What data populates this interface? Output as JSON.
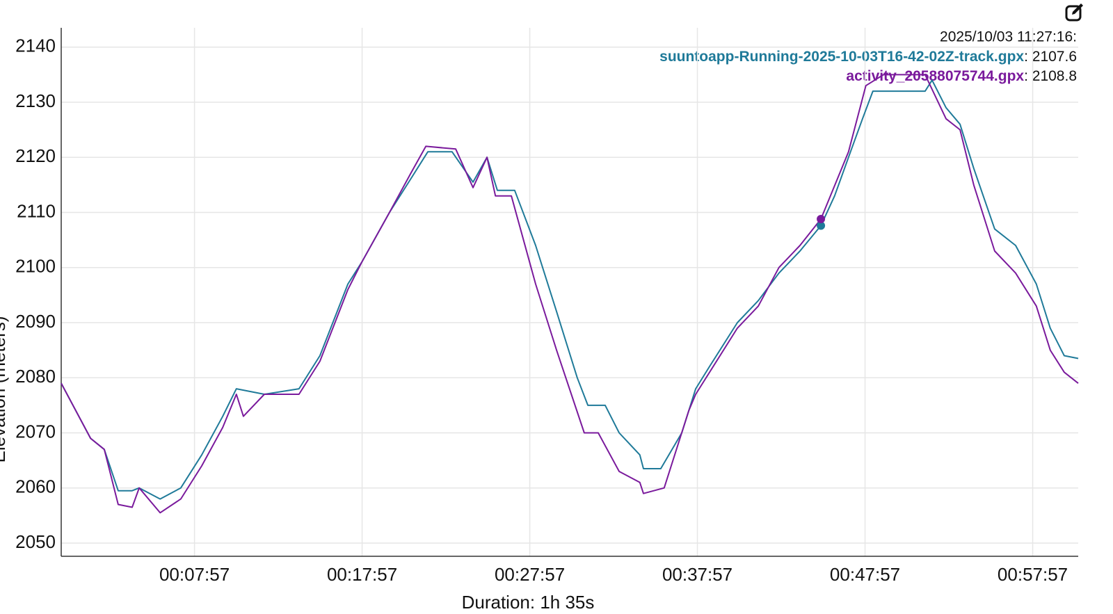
{
  "chart_data": {
    "type": "line",
    "y_label": "Elevation (meters)",
    "x_label": "Duration: 1h 35s",
    "xlim": [
      0,
      3640
    ],
    "ylim": [
      2047.6,
      2143.5
    ],
    "xticks": [
      {
        "value": 477,
        "label": "00:07:57"
      },
      {
        "value": 1077,
        "label": "00:17:57"
      },
      {
        "value": 1677,
        "label": "00:27:57"
      },
      {
        "value": 2277,
        "label": "00:37:57"
      },
      {
        "value": 2877,
        "label": "00:47:57"
      },
      {
        "value": 3477,
        "label": "00:57:57"
      }
    ],
    "yticks": [
      2050,
      2060,
      2070,
      2080,
      2090,
      2100,
      2110,
      2120,
      2130,
      2140
    ],
    "grid": true,
    "highlight": {
      "label": "2025/10/03 11:27:16:",
      "x": 2719,
      "values": [
        2107.6,
        2108.8
      ]
    },
    "series": [
      {
        "name": "suuntoapp-Running-2025-10-03T16-42-02Z-track.gpx",
        "color": "#1f7a99",
        "x": [
          0,
          105,
          154,
          204,
          254,
          279,
          354,
          428,
          503,
          578,
          627,
          727,
          851,
          926,
          1026,
          1076,
          1175,
          1250,
          1312,
          1399,
          1474,
          1524,
          1561,
          1623,
          1698,
          1773,
          1847,
          1885,
          1947,
          1997,
          2071,
          2084,
          2146,
          2221,
          2271,
          2320,
          2420,
          2495,
          2569,
          2644,
          2719,
          2768,
          2818,
          2868,
          2905,
          3017,
          3092,
          3117,
          3167,
          3217,
          3266,
          3341,
          3416,
          3490,
          3540,
          3590,
          3640
        ],
        "values": [
          2079,
          2069,
          2067,
          2059.5,
          2059.5,
          2060,
          2058,
          2060,
          2066,
          2073,
          2078,
          2077,
          2078,
          2084,
          2097,
          2101,
          2110,
          2116,
          2121,
          2121,
          2115.5,
          2120,
          2114,
          2114,
          2104,
          2092,
          2080,
          2075,
          2075,
          2070,
          2066,
          2063.5,
          2063.5,
          2070,
          2078,
          2082,
          2090,
          2094,
          2099,
          2103,
          2107.6,
          2113,
          2120,
          2127,
          2132,
          2132,
          2132,
          2134,
          2129,
          2126,
          2118,
          2107,
          2104,
          2097,
          2089,
          2084,
          2083.5
        ]
      },
      {
        "name": "activity_20588075744.gpx",
        "color": "#7a1a9c",
        "x": [
          0,
          105,
          154,
          204,
          254,
          279,
          354,
          428,
          503,
          578,
          627,
          652,
          727,
          851,
          926,
          1026,
          1076,
          1175,
          1250,
          1305,
          1412,
          1474,
          1524,
          1554,
          1611,
          1698,
          1773,
          1872,
          1922,
          1997,
          2071,
          2084,
          2158,
          2246,
          2271,
          2420,
          2495,
          2569,
          2644,
          2719,
          2818,
          2880,
          2943,
          3092,
          3167,
          3217,
          3266,
          3341,
          3416,
          3490,
          3540,
          3590,
          3640
        ],
        "values": [
          2079,
          2069,
          2067,
          2057,
          2056.5,
          2060,
          2055.5,
          2058,
          2064,
          2071,
          2077,
          2073,
          2077,
          2077,
          2083,
          2096,
          2101,
          2110,
          2117,
          2122,
          2121.5,
          2114.5,
          2120,
          2113,
          2113,
          2097,
          2085,
          2070,
          2070,
          2063,
          2061,
          2059,
          2060,
          2074,
          2077,
          2089,
          2093,
          2100,
          2104,
          2108.8,
          2121,
          2133,
          2135,
          2135,
          2127,
          2125,
          2115,
          2103,
          2099,
          2093,
          2085,
          2081,
          2079
        ]
      }
    ]
  }
}
